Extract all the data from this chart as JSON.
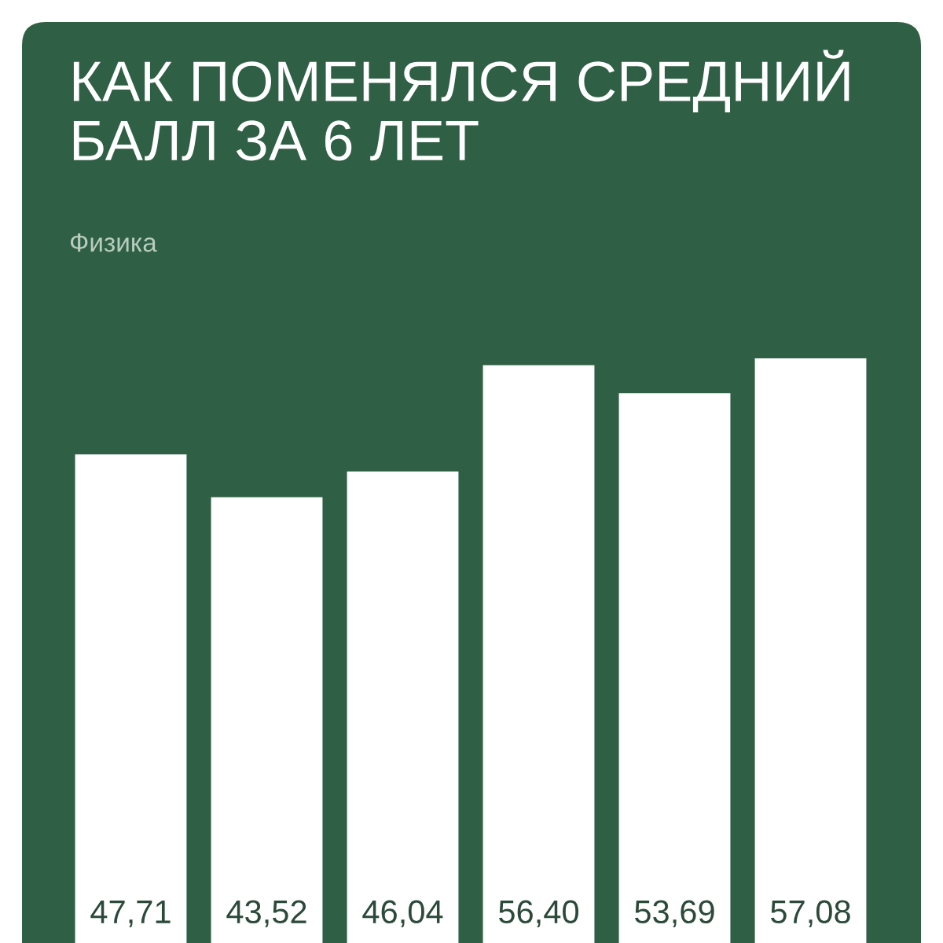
{
  "chart_data": {
    "type": "bar",
    "title": "КАК ПОМЕНЯЛСЯ СРЕДНИЙ\nБАЛЛ ЗА 6 ЛЕТ",
    "subtitle": "Физика",
    "categories": [
      null,
      null,
      null,
      null,
      null,
      null
    ],
    "values": [
      47.71,
      43.52,
      46.04,
      56.4,
      53.69,
      57.08
    ],
    "value_labels": [
      "47,71",
      "43,52",
      "46,04",
      "56,40",
      "53,69",
      "57,08"
    ],
    "color": "#ffffff",
    "grid": false
  }
}
